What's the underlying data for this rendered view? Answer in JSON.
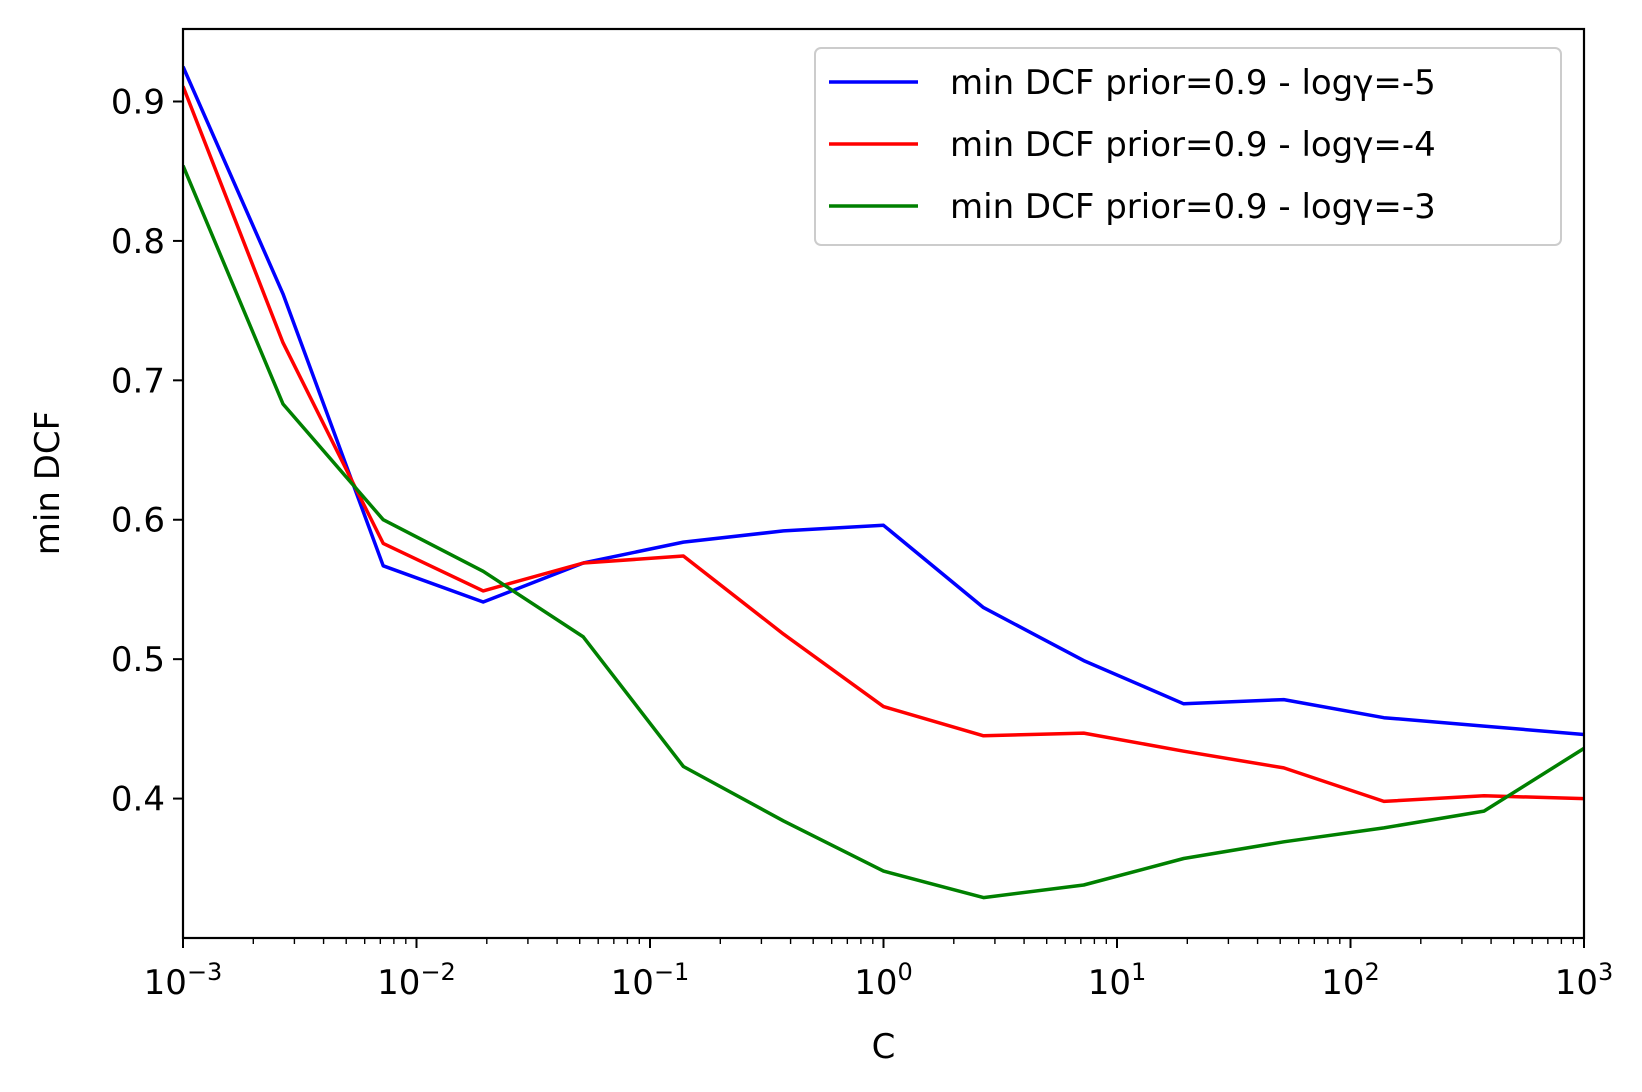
{
  "chart_data": {
    "type": "line",
    "title": "",
    "xlabel": "C",
    "ylabel": "min DCF",
    "xscale": "log",
    "xlim": [
      0.001,
      1000
    ],
    "ylim": [
      0.3,
      0.952
    ],
    "x_ticks": [
      {
        "base": "10",
        "exp": "−3",
        "value": 0.001
      },
      {
        "base": "10",
        "exp": "−2",
        "value": 0.01
      },
      {
        "base": "10",
        "exp": "−1",
        "value": 0.1
      },
      {
        "base": "10",
        "exp": "0",
        "value": 1
      },
      {
        "base": "10",
        "exp": "1",
        "value": 10
      },
      {
        "base": "10",
        "exp": "2",
        "value": 100
      },
      {
        "base": "10",
        "exp": "3",
        "value": 1000
      }
    ],
    "y_ticks": [
      {
        "label": "0.4",
        "value": 0.4
      },
      {
        "label": "0.5",
        "value": 0.5
      },
      {
        "label": "0.6",
        "value": 0.6
      },
      {
        "label": "0.7",
        "value": 0.7
      },
      {
        "label": "0.8",
        "value": 0.8
      },
      {
        "label": "0.9",
        "value": 0.9
      }
    ],
    "legend_position": "top-right",
    "x": [
      0.001,
      0.00268,
      0.0072,
      0.0193,
      0.0518,
      0.139,
      0.373,
      1.0,
      2.68,
      7.2,
      19.3,
      51.8,
      139,
      373,
      1000
    ],
    "series": [
      {
        "name": "min DCF prior=0.9 - logγ=-5",
        "color": "#0000ff",
        "values": [
          0.925,
          0.762,
          0.567,
          0.541,
          0.569,
          0.584,
          0.592,
          0.596,
          0.537,
          0.499,
          0.468,
          0.471,
          0.458,
          0.452,
          0.446
        ]
      },
      {
        "name": "min DCF prior=0.9 - logγ=-4",
        "color": "#ff0000",
        "values": [
          0.911,
          0.727,
          0.583,
          0.549,
          0.569,
          0.574,
          0.518,
          0.466,
          0.445,
          0.447,
          0.434,
          0.422,
          0.398,
          0.402,
          0.4
        ]
      },
      {
        "name": "min DCF prior=0.9 - logγ=-3",
        "color": "#008000",
        "values": [
          0.854,
          0.683,
          0.6,
          0.563,
          0.516,
          0.423,
          0.384,
          0.348,
          0.329,
          0.338,
          0.357,
          0.369,
          0.379,
          0.391,
          0.436
        ]
      }
    ]
  }
}
